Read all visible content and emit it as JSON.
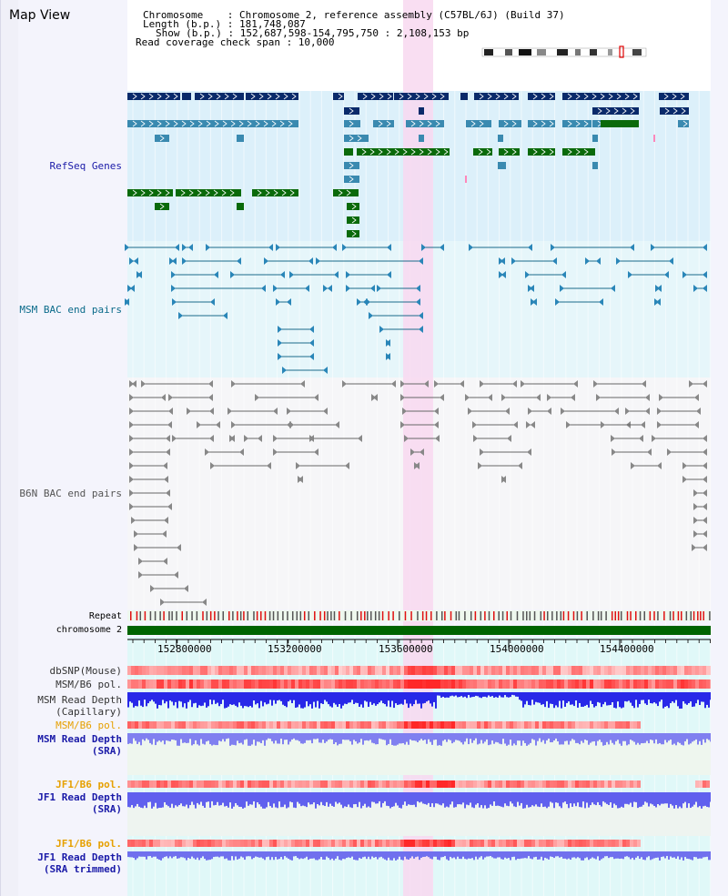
{
  "title": "Map View",
  "header": {
    "chromosome_line": "Chromosome    : Chromosome 2, reference assembly (C57BL/6J) (Build 37)",
    "length_line": "Length (b.p.) : 181,748,087",
    "show_line": "Show (b.p.) : 152,687,598-154,795,750 : 2,108,153 bp",
    "coverage_line": "Read coverage check span : 10,000"
  },
  "tracks": {
    "refseq": "RefSeq Genes",
    "msm_bac": "MSM BAC end pairs",
    "b6n_bac": "B6N BAC end pairs",
    "repeat": "Repeat",
    "chromosome": "chromosome 2"
  },
  "axis": {
    "ticks": [
      "152800000",
      "153200000",
      "153600000",
      "154000000",
      "154400000"
    ]
  },
  "lower_tracks": [
    {
      "line1": "dbSNP(Mouse)",
      "line2": "",
      "color": "#333333"
    },
    {
      "line1": "MSM/B6 pol.",
      "line2": "",
      "color": "#333333"
    },
    {
      "line1": "MSM Read Depth",
      "line2": "(Capillary)",
      "color": "#333333"
    },
    {
      "line1": "MSM/B6 pol.",
      "line2": "",
      "color": "#e6a000"
    },
    {
      "line1": "MSM Read Depth",
      "line2": "(SRA)",
      "color": "#1a1aa8"
    },
    {
      "line1": "JF1/B6 pol.",
      "line2": "",
      "color": "#e6a000"
    },
    {
      "line1": "JF1 Read Depth",
      "line2": "(SRA)",
      "color": "#1a1aa8"
    },
    {
      "line1": "JF1/B6 pol.",
      "line2": "",
      "color": "#e6a000"
    },
    {
      "line1": "JF1 Read Depth",
      "line2": "(SRA trimmed)",
      "color": "#1a1aa8"
    }
  ],
  "colors": {
    "refseq_label": "#1a1aa8",
    "msm_label": "#0a6a8a",
    "b6n_label": "#555555",
    "highlight": "#f8d8f0",
    "chromosome_bar": "#006400",
    "gene_dark": "#0a2a6a",
    "gene_mid": "#3a8ab0",
    "gene_green": "#0a6a0a"
  }
}
